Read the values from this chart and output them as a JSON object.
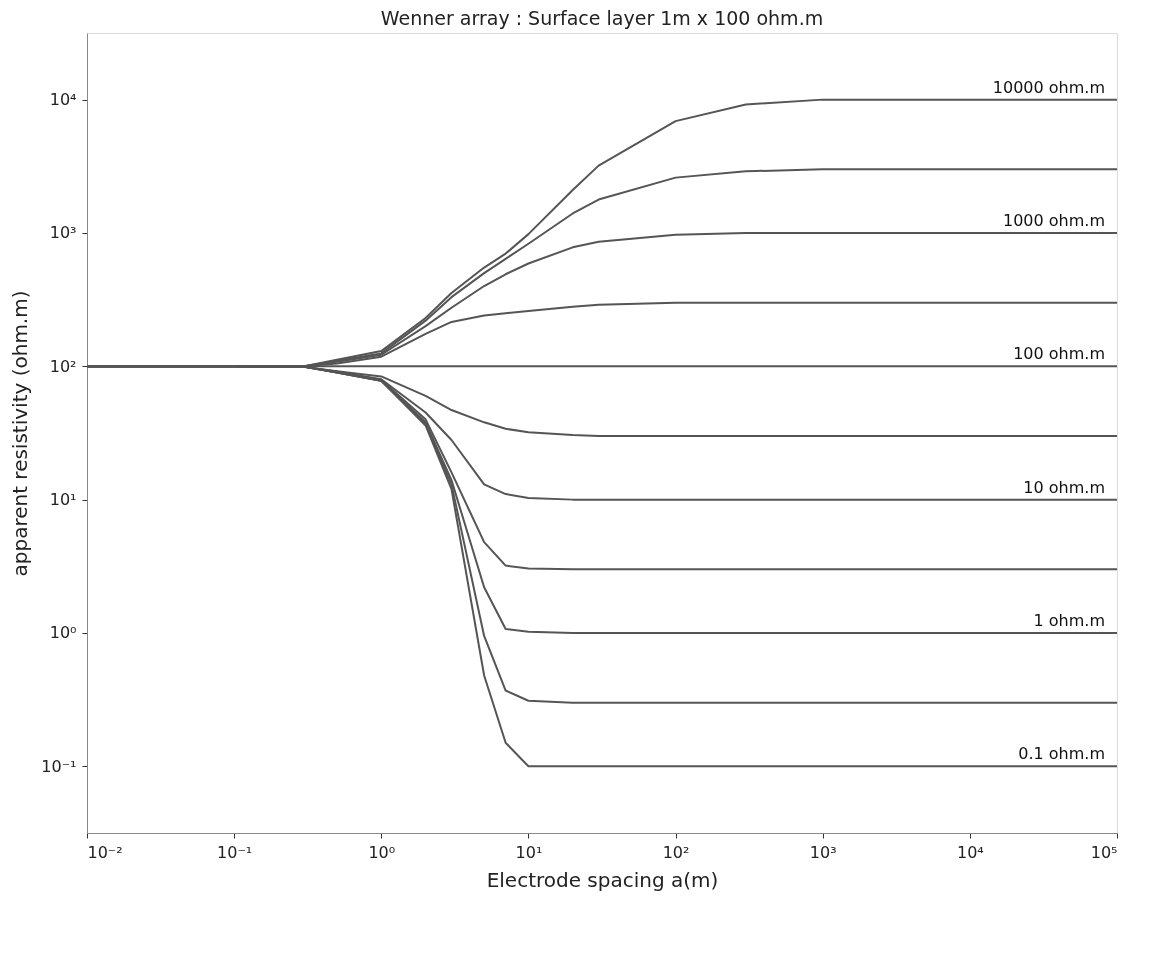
{
  "chart_data": {
    "type": "line",
    "title": "Wenner array : Surface layer 1m x 100 ohm.m",
    "xlabel": "Electrode spacing     a(m)",
    "ylabel": "apparent resistivity (ohm.m)",
    "x": [
      0.01,
      0.1,
      0.3,
      0.5,
      1,
      2,
      3,
      5,
      7,
      10,
      20,
      30,
      100,
      300,
      1000,
      100000
    ],
    "series": [
      {
        "name": "10000 ohm.m",
        "color": "#555555",
        "values": [
          100,
          100,
          100,
          112,
          130,
          230,
          355,
          550,
          700,
          980,
          2100,
          3200,
          6900,
          9200,
          10000,
          10000
        ]
      },
      {
        "color": "#555555",
        "values": [
          100,
          100,
          100,
          110,
          125,
          220,
          330,
          500,
          640,
          830,
          1400,
          1780,
          2600,
          2900,
          3000,
          3000
        ]
      },
      {
        "name": "1000 ohm.m",
        "color": "#555555",
        "values": [
          100,
          100,
          100,
          108,
          122,
          200,
          275,
          400,
          490,
          590,
          780,
          860,
          970,
          1000,
          1000,
          1000
        ]
      },
      {
        "color": "#555555",
        "values": [
          100,
          100,
          100,
          105,
          118,
          175,
          215,
          240,
          250,
          260,
          280,
          290,
          300,
          300,
          300,
          300
        ]
      },
      {
        "name": "100 ohm.m",
        "color": "#555555",
        "values": [
          100,
          100,
          100,
          100,
          100,
          100,
          100,
          100,
          100,
          100,
          100,
          100,
          100,
          100,
          100,
          100
        ]
      },
      {
        "color": "#555555",
        "values": [
          100,
          100,
          99,
          92,
          84,
          60,
          47,
          38,
          34,
          32,
          30.5,
          30,
          30,
          30,
          30,
          30
        ]
      },
      {
        "name": "10 ohm.m",
        "color": "#555555",
        "values": [
          100,
          100,
          99,
          91,
          80,
          45,
          28,
          13,
          11,
          10.3,
          10,
          10,
          10,
          10,
          10,
          10
        ]
      },
      {
        "color": "#555555",
        "values": [
          100,
          100,
          99,
          91,
          79,
          40,
          16,
          4.8,
          3.2,
          3.05,
          3,
          3,
          3,
          3,
          3,
          3
        ]
      },
      {
        "name": "1 ohm.m",
        "color": "#555555",
        "values": [
          100,
          100,
          99,
          90,
          78,
          38,
          14,
          2.2,
          1.07,
          1.02,
          1,
          1,
          1,
          1,
          1,
          1
        ]
      },
      {
        "color": "#555555",
        "values": [
          100,
          100,
          99,
          90,
          78,
          37,
          13,
          0.95,
          0.37,
          0.31,
          0.3,
          0.3,
          0.3,
          0.3,
          0.3,
          0.3
        ]
      },
      {
        "name": "0.1 ohm.m",
        "color": "#555555",
        "values": [
          100,
          100,
          99,
          90,
          78,
          36,
          12,
          0.48,
          0.15,
          0.1,
          0.1,
          0.1,
          0.1,
          0.1,
          0.1,
          0.1
        ]
      }
    ],
    "log": "xy",
    "grid": false,
    "legend": false,
    "marker": "none",
    "line_style": "solid",
    "xlim": [
      0.01,
      100000
    ],
    "xticks": [
      {
        "value": 0.01,
        "label": "10⁻²"
      },
      {
        "value": 0.1,
        "label": "10⁻¹"
      },
      {
        "value": 1,
        "label": "10⁰"
      },
      {
        "value": 10,
        "label": "10¹"
      },
      {
        "value": 100,
        "label": "10²"
      },
      {
        "value": 1000,
        "label": "10³"
      },
      {
        "value": 10000,
        "label": "10⁴"
      },
      {
        "value": 100000,
        "label": "10⁵"
      }
    ],
    "ylim": [
      0.0316,
      31600
    ],
    "yticks": [
      {
        "value": 0.1,
        "label": "10⁻¹"
      },
      {
        "value": 1,
        "label": "10⁰"
      },
      {
        "value": 10,
        "label": "10¹"
      },
      {
        "value": 100,
        "label": "10²"
      },
      {
        "value": 1000,
        "label": "10³"
      },
      {
        "value": 10000,
        "label": "10⁴"
      }
    ]
  }
}
